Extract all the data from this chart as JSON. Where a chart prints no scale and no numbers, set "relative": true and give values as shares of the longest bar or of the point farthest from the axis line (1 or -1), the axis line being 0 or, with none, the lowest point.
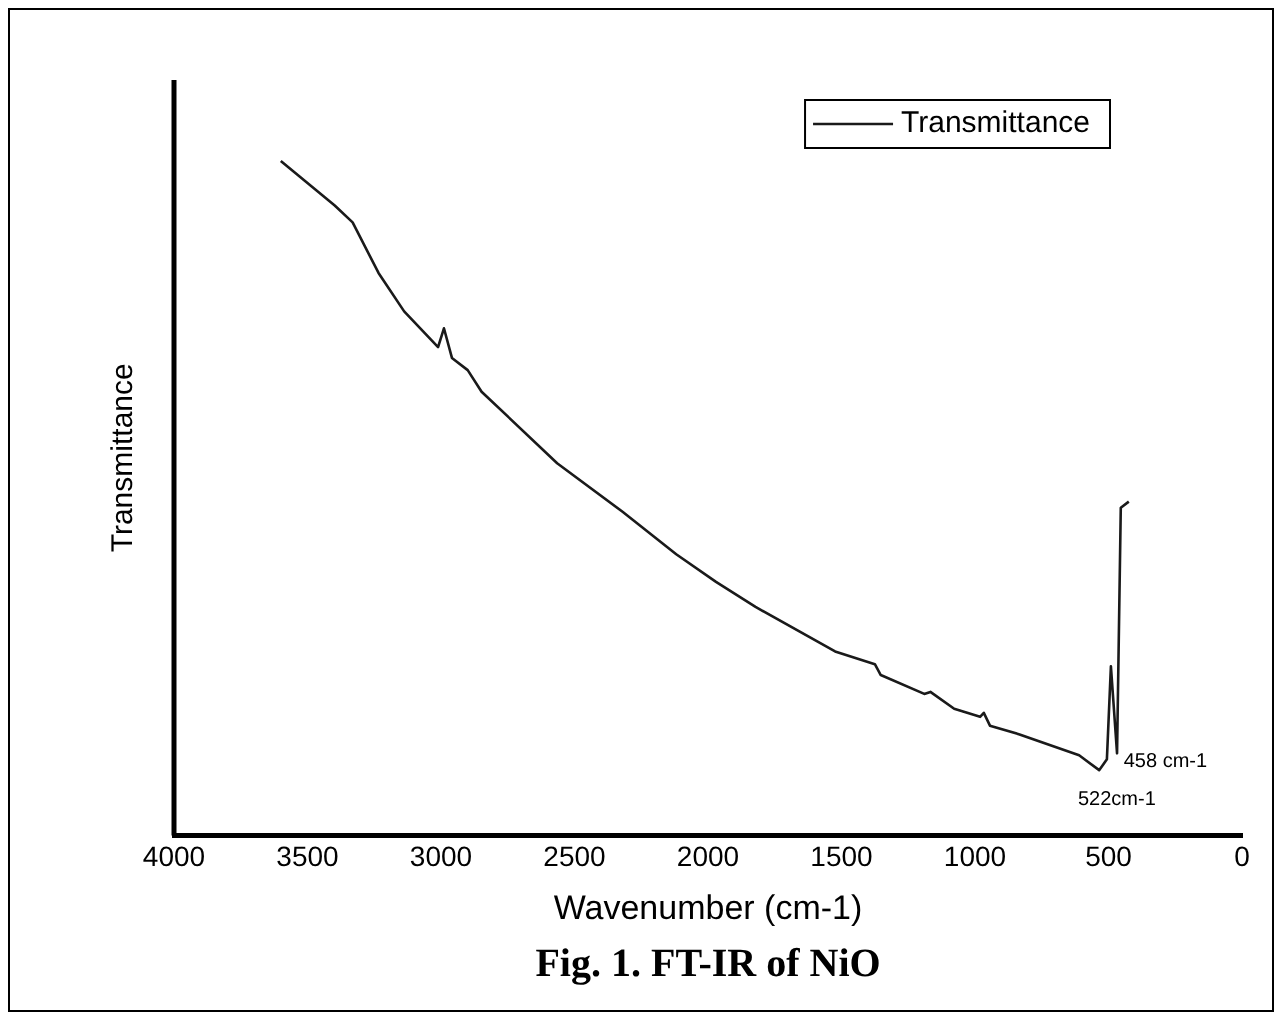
{
  "chart_data": {
    "type": "line",
    "title": "Fig. 1. FT-IR of NiO",
    "xlabel": "Wavenumber (cm-1)",
    "ylabel": "Transmittance",
    "relative": true,
    "tick_labels": "x",
    "legend": "top right",
    "grid": false,
    "marker": "none",
    "line_style": "solid",
    "xlim": [
      4000,
      0
    ],
    "xticks": [
      4000,
      3500,
      3000,
      2500,
      2000,
      1500,
      1000,
      500,
      0
    ],
    "series": [
      {
        "name": "Transmittance",
        "color": "#1a1a1a",
        "x": [
          3600,
          3398,
          3331,
          3234,
          3138,
          3011,
          2989,
          2959,
          2900,
          2848,
          2565,
          2320,
          2119,
          1970,
          1822,
          1524,
          1375,
          1353,
          1190,
          1167,
          1078,
          981,
          967,
          944,
          833,
          610,
          535,
          506,
          491,
          468,
          454,
          424
        ],
        "values": [
          1,
          0.934,
          0.909,
          0.834,
          0.777,
          0.724,
          0.752,
          0.708,
          0.69,
          0.658,
          0.552,
          0.48,
          0.417,
          0.376,
          0.339,
          0.273,
          0.254,
          0.238,
          0.21,
          0.213,
          0.188,
          0.176,
          0.182,
          0.163,
          0.15,
          0.119,
          0.097,
          0.113,
          0.251,
          0.122,
          0.486,
          0.495
        ]
      }
    ],
    "annotations": [
      {
        "text": "458 cm-1",
        "x": 458,
        "y": 0.11
      },
      "522cm-1"
    ]
  }
}
